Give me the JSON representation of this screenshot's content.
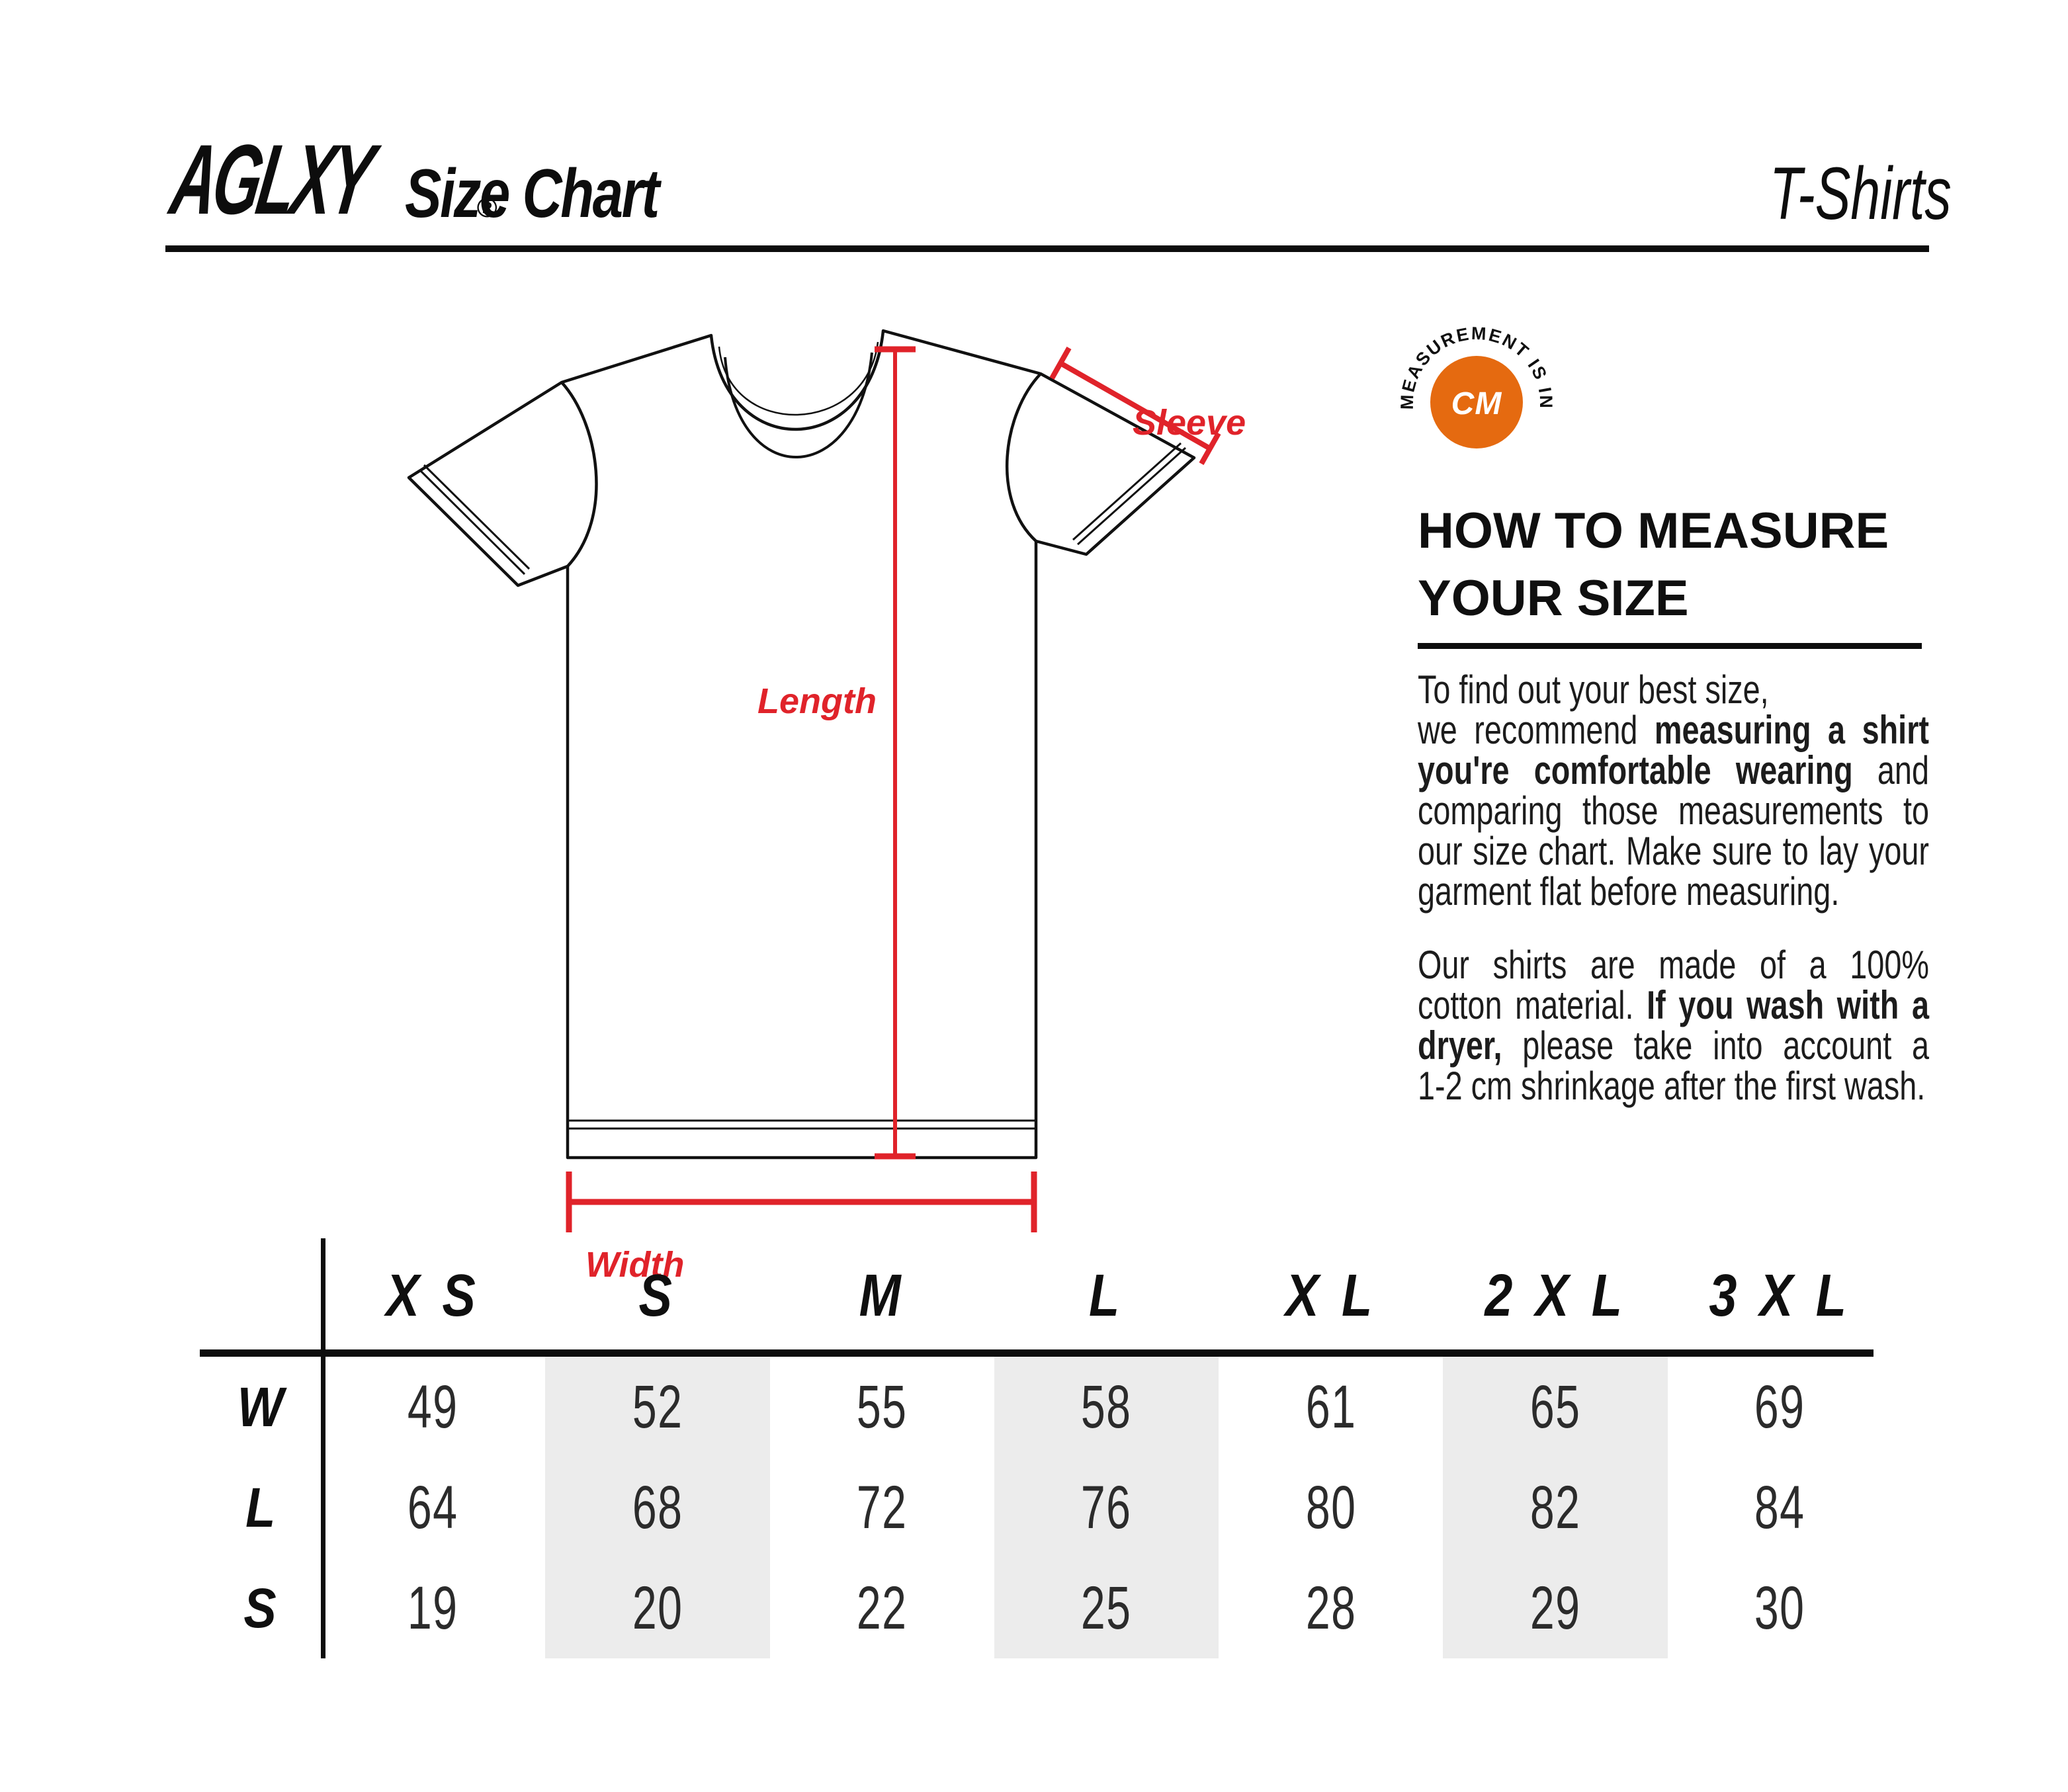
{
  "header": {
    "brand": "AGLXY",
    "registered_mark": "®",
    "title": "Size Chart",
    "product_type": "T-Shirts"
  },
  "diagram": {
    "length_label": "Length",
    "sleeve_label": "Sleeve",
    "width_label": "Width",
    "accent_color": "#E0232A",
    "badge": {
      "curved_text": "MEASUREMENT IS IN",
      "unit_label": "CM",
      "circle_color": "#E56A10"
    }
  },
  "how_to_measure": {
    "heading_line1": "HOW TO MEASURE",
    "heading_line2": "YOUR SIZE",
    "paragraph1": [
      {
        "justify": false,
        "segments": [
          {
            "t": "To find out your best size,",
            "b": false
          }
        ]
      },
      {
        "justify": true,
        "segments": [
          {
            "t": "we recommend ",
            "b": false
          },
          {
            "t": "measuring a shirt",
            "b": true
          }
        ]
      },
      {
        "justify": true,
        "segments": [
          {
            "t": "you're comfortable wearing",
            "b": true
          },
          {
            "t": " and",
            "b": false
          }
        ]
      },
      {
        "justify": true,
        "segments": [
          {
            "t": "comparing those measurements to",
            "b": false
          }
        ]
      },
      {
        "justify": true,
        "segments": [
          {
            "t": "our size chart. Make sure to lay your",
            "b": false
          }
        ]
      },
      {
        "justify": false,
        "segments": [
          {
            "t": "garment flat before measuring.",
            "b": false
          }
        ]
      }
    ],
    "paragraph2": [
      {
        "justify": true,
        "segments": [
          {
            "t": "Our shirts are made of a 100%",
            "b": false
          }
        ]
      },
      {
        "justify": true,
        "segments": [
          {
            "t": "cotton material. ",
            "b": false
          },
          {
            "t": "If you wash with a",
            "b": true
          }
        ]
      },
      {
        "justify": true,
        "segments": [
          {
            "t": "dryer,",
            "b": true
          },
          {
            "t": " please take into account a",
            "b": false
          }
        ]
      },
      {
        "justify": false,
        "segments": [
          {
            "t": "1-2 cm shrinkage after the first wash.",
            "b": false
          }
        ]
      }
    ]
  },
  "size_table": {
    "column_headers": [
      "X S",
      "S",
      "M",
      "L",
      "X L",
      "2 X L",
      "3 X L"
    ],
    "shaded_column_indexes": [
      1,
      3,
      5
    ],
    "shade_color": "#ECECEC",
    "rows": [
      {
        "label": "W",
        "values": [
          "49",
          "52",
          "55",
          "58",
          "61",
          "65",
          "69"
        ]
      },
      {
        "label": "L",
        "values": [
          "64",
          "68",
          "72",
          "76",
          "80",
          "82",
          "84"
        ]
      },
      {
        "label": "S",
        "values": [
          "19",
          "20",
          "22",
          "25",
          "28",
          "29",
          "30"
        ]
      }
    ]
  }
}
